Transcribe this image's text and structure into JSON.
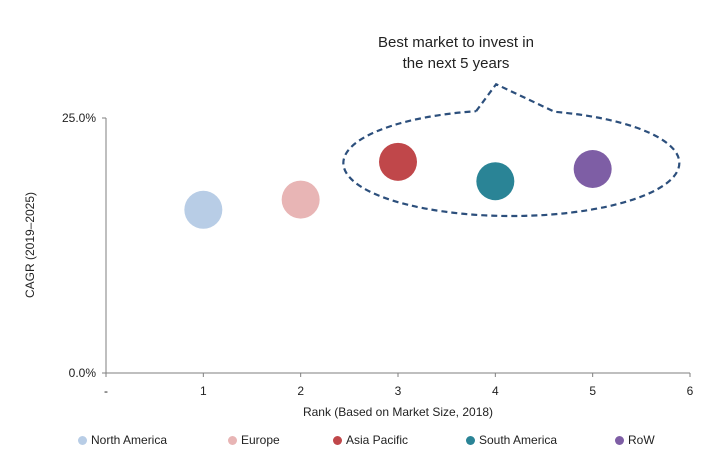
{
  "chart_data": {
    "type": "scatter",
    "xlabel": "Rank (Based on Market Size, 2018)",
    "ylabel": "CAGR (2019–2025)",
    "xlim": [
      0,
      6
    ],
    "ylim": [
      0,
      25
    ],
    "x_ticks": [
      "-",
      "1",
      "2",
      "3",
      "4",
      "5",
      "6"
    ],
    "y_ticks": [
      "0.0%",
      "25.0%"
    ],
    "grid": false,
    "legend_position": "bottom",
    "annotation": {
      "lines": [
        "Best market to invest in",
        "the next 5 years"
      ],
      "encloses": [
        "Asia Pacific",
        "South America",
        "RoW"
      ]
    },
    "series": [
      {
        "name": "North America",
        "color": "#b8cde6",
        "x": 1,
        "y": 16.0
      },
      {
        "name": "Europe",
        "color": "#e8b5b5",
        "x": 2,
        "y": 17.0
      },
      {
        "name": "Asia Pacific",
        "color": "#c0474a",
        "x": 3,
        "y": 20.7
      },
      {
        "name": "South America",
        "color": "#2a8496",
        "x": 4,
        "y": 18.8
      },
      {
        "name": "RoW",
        "color": "#7e5ea5",
        "x": 5,
        "y": 20.0
      }
    ]
  }
}
